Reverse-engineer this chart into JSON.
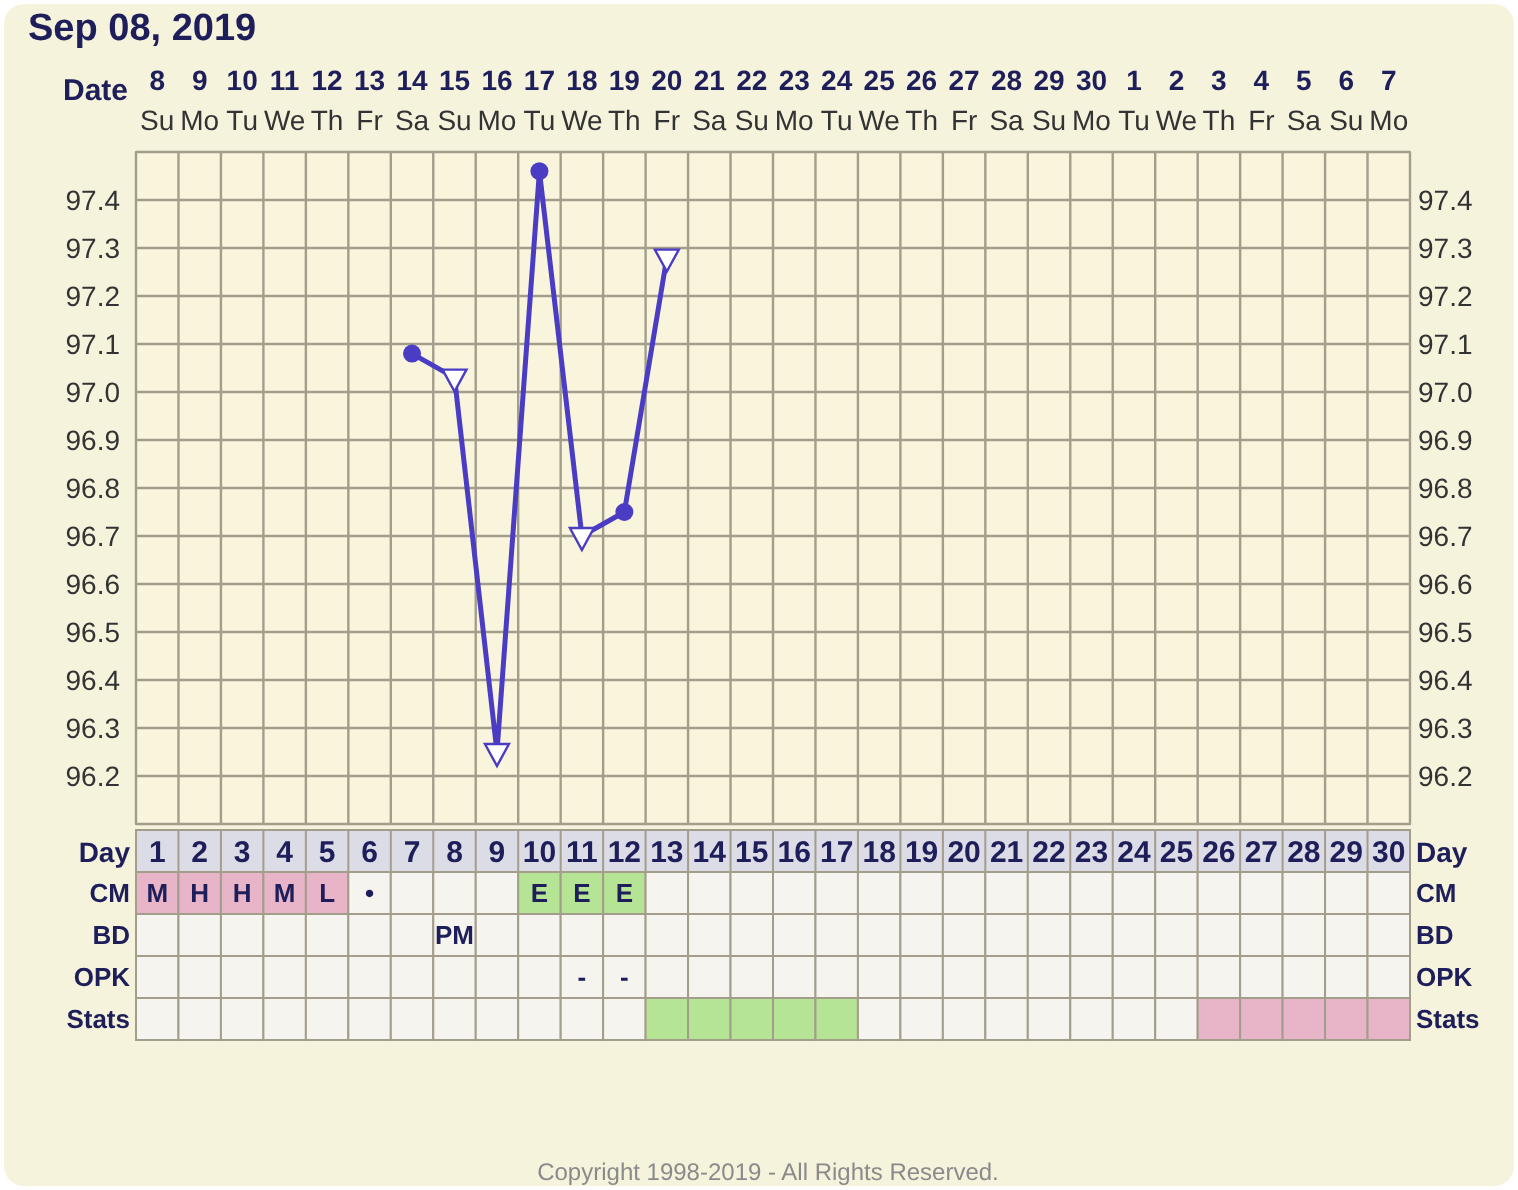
{
  "chart_data": [
    {
      "type": "line",
      "title": "Sep 08, 2019",
      "xlabel": "Date",
      "x2label": "Day",
      "categories": [
        "8 Su",
        "9 Mo",
        "10 Tu",
        "11 We",
        "12 Th",
        "13 Fr",
        "14 Sa",
        "15 Su",
        "16 Mo",
        "17 Tu",
        "18 We",
        "19 Th",
        "20 Fr",
        "21 Sa",
        "22 Su",
        "23 Mo",
        "24 Tu",
        "25 We",
        "26 Th",
        "27 Fr",
        "28 Sa",
        "29 Su",
        "30 Mo",
        "1 Tu",
        "2 We",
        "3 Th",
        "4 Fr",
        "5 Sa",
        "6 Su",
        "7 Mo"
      ],
      "series": [
        {
          "type": "line",
          "color": "#4b3cc4",
          "marker": "none",
          "values": [
            null,
            null,
            null,
            null,
            null,
            null,
            97.08,
            97.03,
            96.25,
            97.46,
            96.7,
            96.75,
            97.28,
            null,
            null,
            null,
            null,
            null,
            null,
            null,
            null,
            null,
            null,
            null,
            null,
            null,
            null,
            null,
            null,
            null
          ]
        },
        {
          "type": "scatter",
          "color": "#4b3cc4",
          "marker": "circle",
          "x": [
            "14 Sa",
            "17 Tu",
            "19 Th"
          ],
          "values": [
            97.08,
            97.46,
            96.75
          ]
        },
        {
          "type": "scatter",
          "color": "#4b3cc4",
          "marker": "triangle",
          "x": [
            "15 Su",
            "16 Mo",
            "18 We",
            "20 Fr"
          ],
          "values": [
            97.03,
            96.25,
            96.7,
            97.28
          ]
        }
      ],
      "ylim": [
        96.1,
        97.5
      ],
      "yticks": [
        {
          "value": 96.1,
          "label": null
        },
        96.2,
        96.3,
        96.4,
        96.5,
        96.6,
        96.7,
        96.8,
        96.9,
        {
          "value": 97,
          "label": "97.0"
        },
        97.1,
        97.2,
        97.3,
        97.4,
        {
          "value": 97.5,
          "label": null
        }
      ],
      "y2lim": [
        96.1,
        97.5
      ],
      "y2ticks": [
        96.2,
        96.3,
        96.4,
        96.5,
        96.6,
        96.7,
        96.8,
        96.9,
        {
          "value": 97,
          "label": "97.0"
        },
        97.1,
        97.2,
        97.3,
        97.4
      ],
      "x2lim": [
        0.5,
        30.5
      ],
      "x2ticks": [
        1,
        2,
        3,
        4,
        5,
        6,
        7,
        8,
        9,
        10,
        11,
        12,
        13,
        14,
        15,
        16,
        17,
        18,
        19,
        20,
        21,
        22,
        23,
        24,
        25,
        26,
        27,
        28,
        29,
        30
      ],
      "grid": true
    },
    {
      "type": "other",
      "y_categories": [
        "CM",
        "BD",
        "OPK",
        "Stats"
      ],
      "y2_categories": [
        "CM",
        "BD",
        "OPK",
        "Stats"
      ],
      "cell_labels": [
        [
          "M",
          "H",
          "H",
          "M",
          "L",
          "•",
          null,
          null,
          null,
          "E",
          "E",
          "E",
          null,
          null,
          null,
          null,
          null,
          null,
          null,
          null,
          null,
          null,
          null,
          null,
          null,
          null,
          null,
          null,
          null,
          null
        ],
        [
          null,
          null,
          null,
          null,
          null,
          null,
          null,
          "PM",
          null,
          null,
          null,
          null,
          null,
          null,
          null,
          null,
          null,
          null,
          null,
          null,
          null,
          null,
          null,
          null,
          null,
          null,
          null,
          null,
          null,
          null
        ],
        [
          null,
          null,
          null,
          null,
          null,
          null,
          null,
          null,
          null,
          null,
          "-",
          "-",
          null,
          null,
          null,
          null,
          null,
          null,
          null,
          null,
          null,
          null,
          null,
          null,
          null,
          null,
          null,
          null,
          null,
          null
        ],
        [
          null,
          null,
          null,
          null,
          null,
          null,
          null,
          null,
          null,
          null,
          null,
          null,
          null,
          null,
          null,
          null,
          null,
          null,
          null,
          null,
          null,
          null,
          null,
          null,
          null,
          null,
          null,
          null,
          null,
          null
        ]
      ],
      "colors": [
        [
          "#e8b4c8",
          "#e8b4c8",
          "#e8b4c8",
          "#e8b4c8",
          "#e8b4c8",
          null,
          null,
          null,
          null,
          "#b4e494",
          "#b4e494",
          "#b4e494",
          null,
          null,
          null,
          null,
          null,
          null,
          null,
          null,
          null,
          null,
          null,
          null,
          null,
          null,
          null,
          null,
          null,
          null
        ],
        [
          null,
          null,
          null,
          null,
          null,
          null,
          null,
          null,
          null,
          null,
          null,
          null,
          null,
          null,
          null,
          null,
          null,
          null,
          null,
          null,
          null,
          null,
          null,
          null,
          null,
          null,
          null,
          null,
          null,
          null
        ],
        [
          null,
          null,
          null,
          null,
          null,
          null,
          null,
          null,
          null,
          null,
          null,
          null,
          null,
          null,
          null,
          null,
          null,
          null,
          null,
          null,
          null,
          null,
          null,
          null,
          null,
          null,
          null,
          null,
          null,
          null
        ],
        [
          null,
          null,
          null,
          null,
          null,
          null,
          null,
          null,
          null,
          null,
          null,
          null,
          "#b4e494",
          "#b4e494",
          "#b4e494",
          "#b4e494",
          "#b4e494",
          null,
          null,
          null,
          null,
          null,
          null,
          null,
          null,
          "#e8b4c8",
          "#e8b4c8",
          "#e8b4c8",
          "#e8b4c8",
          "#e8b4c8"
        ]
      ],
      "annotations": [
        "Copyright 1998-2019 - All Rights Reserved."
      ]
    }
  ]
}
